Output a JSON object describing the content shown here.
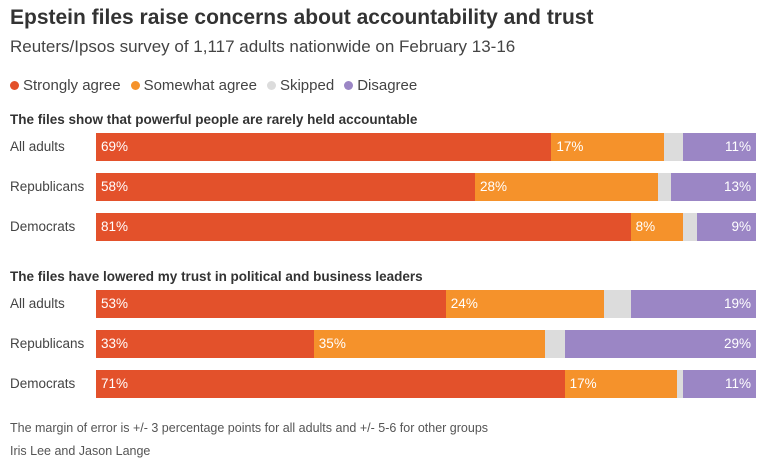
{
  "title": "Epstein files raise concerns about accountability and trust",
  "subtitle": "Reuters/Ipsos survey of 1,117 adults nationwide on February 13-16",
  "legend": [
    {
      "label": "Strongly agree",
      "color": "#e3512b"
    },
    {
      "label": "Somewhat agree",
      "color": "#f5922b"
    },
    {
      "label": "Skipped",
      "color": "#dcdcdc"
    },
    {
      "label": "Disagree",
      "color": "#9b86c5"
    }
  ],
  "chart_data": [
    {
      "type": "bar",
      "stacked": true,
      "orientation": "horizontal",
      "title": "The files show that powerful people are rarely held accountable",
      "categories": [
        "All adults",
        "Republicans",
        "Democrats"
      ],
      "series": [
        {
          "name": "Strongly agree",
          "values": [
            69,
            58,
            81
          ],
          "labels": [
            "69%",
            "58%",
            "81%"
          ]
        },
        {
          "name": "Somewhat agree",
          "values": [
            17,
            28,
            8
          ],
          "labels": [
            "17%",
            "28%",
            "8%"
          ]
        },
        {
          "name": "Skipped",
          "values": [
            3,
            2,
            2
          ],
          "labels": [
            "",
            "",
            ""
          ]
        },
        {
          "name": "Disagree",
          "values": [
            11,
            13,
            9
          ],
          "labels": [
            "11%",
            "13%",
            "9%"
          ]
        }
      ]
    },
    {
      "type": "bar",
      "stacked": true,
      "orientation": "horizontal",
      "title": "The files have lowered my trust in political and business leaders",
      "categories": [
        "All adults",
        "Republicans",
        "Democrats"
      ],
      "series": [
        {
          "name": "Strongly agree",
          "values": [
            53,
            33,
            71
          ],
          "labels": [
            "53%",
            "33%",
            "71%"
          ]
        },
        {
          "name": "Somewhat agree",
          "values": [
            24,
            35,
            17
          ],
          "labels": [
            "24%",
            "35%",
            "17%"
          ]
        },
        {
          "name": "Skipped",
          "values": [
            4,
            3,
            1
          ],
          "labels": [
            "",
            "",
            ""
          ]
        },
        {
          "name": "Disagree",
          "values": [
            19,
            29,
            11
          ],
          "labels": [
            "19%",
            "29%",
            "11%"
          ]
        }
      ]
    }
  ],
  "note": "The margin of error is +/- 3 percentage points for all adults and +/- 5-6 for other groups",
  "credit": "Iris Lee and Jason Lange"
}
